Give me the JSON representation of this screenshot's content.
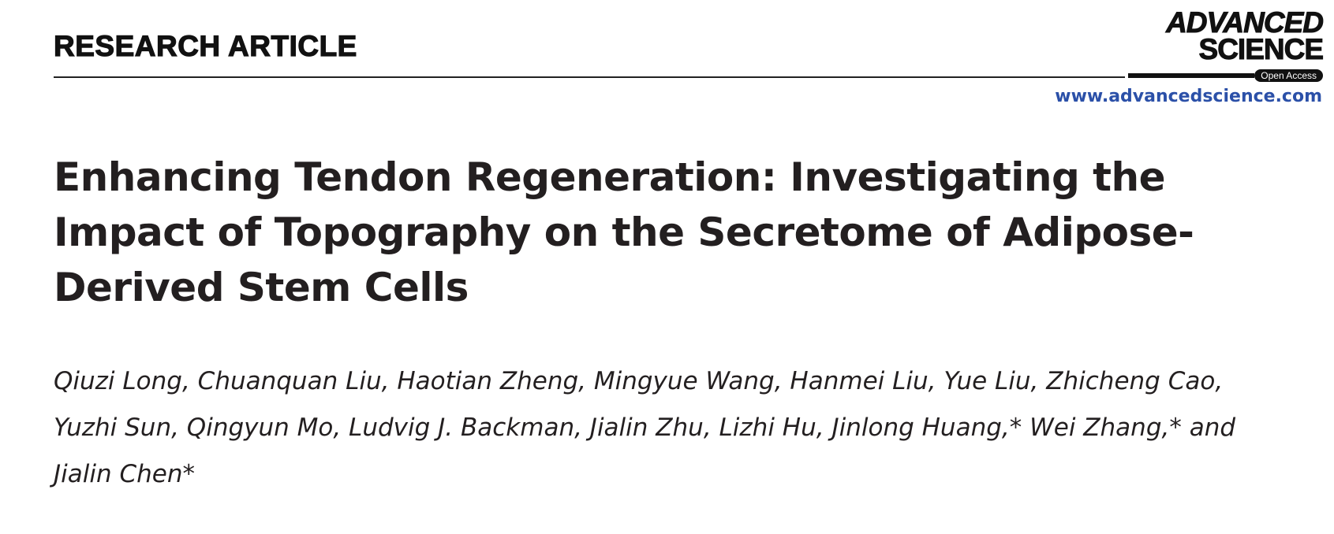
{
  "header": {
    "section_label": "RESEARCH ARTICLE",
    "journal_logo": {
      "line1": "ADVANCED",
      "line2": "SCIENCE",
      "badge": "Open Access"
    },
    "journal_url": "www.advancedscience.com",
    "accent_color": "#2b50a8"
  },
  "article": {
    "title": "Enhancing Tendon Regeneration: Investigating the Impact of Topography on the Secretome of Adipose-Derived Stem Cells",
    "authors": "Qiuzi Long, Chuanquan Liu, Haotian Zheng, Mingyue Wang, Hanmei Liu, Yue Liu, Zhicheng Cao, Yuzhi Sun, Qingyun Mo, Ludvig J. Backman, Jialin Zhu, Lizhi Hu, Jinlong Huang,* Wei Zhang,* and Jialin Chen*"
  }
}
